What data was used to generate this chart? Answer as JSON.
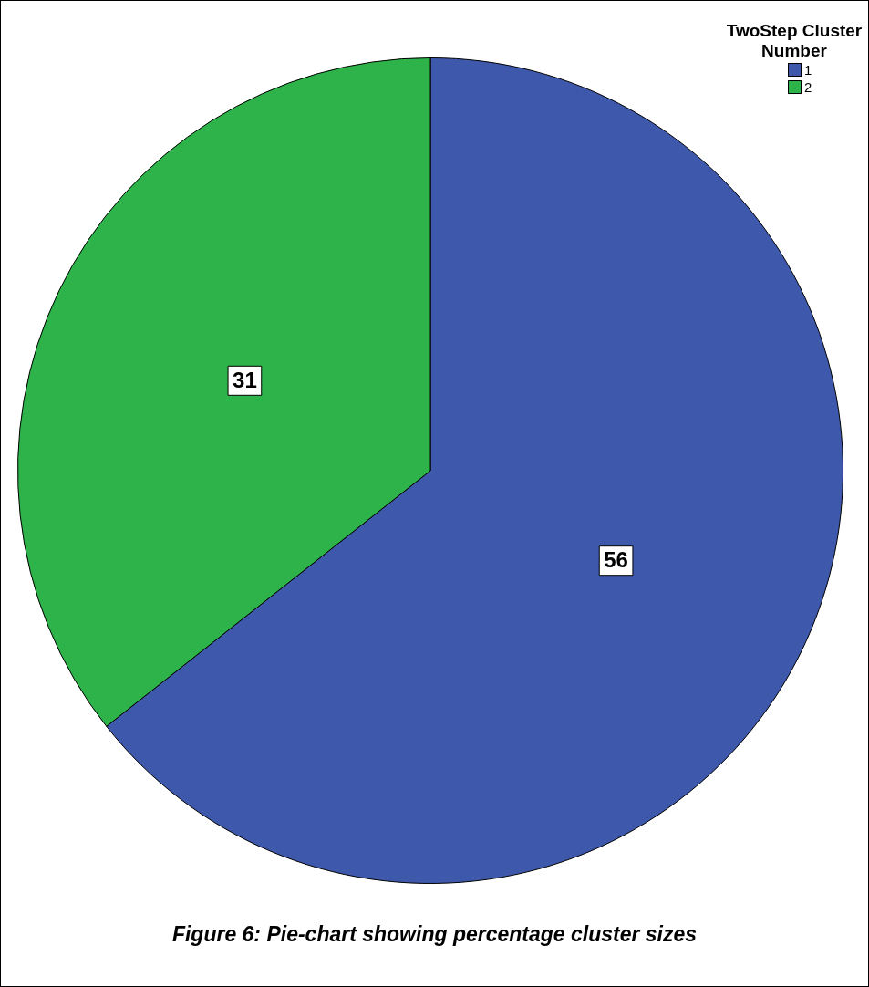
{
  "chart_data": {
    "type": "pie",
    "legend_title": "TwoStep Cluster Number",
    "categories": [
      "1",
      "2"
    ],
    "values": [
      56,
      31
    ],
    "colors": [
      "#3e58ab",
      "#2db34a"
    ],
    "data_labels": true,
    "legend": "top right",
    "annotations": [
      "Figure 6: Pie-chart showing percentage cluster sizes"
    ]
  }
}
